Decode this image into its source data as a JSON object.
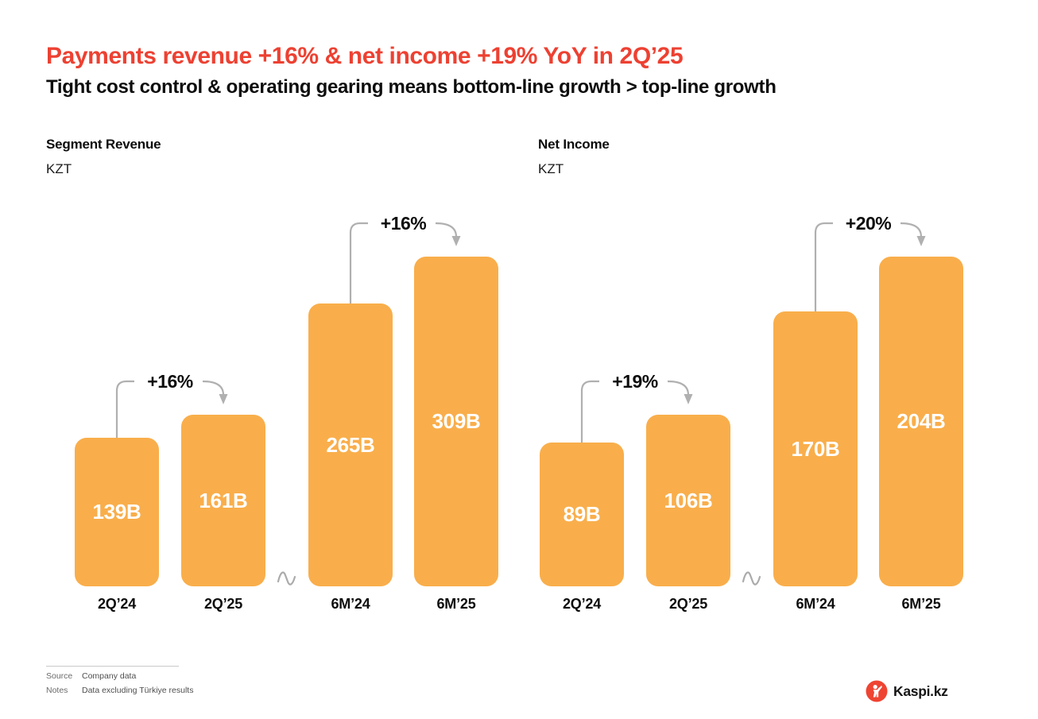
{
  "header": {
    "title": "Payments revenue +16% & net income +19% YoY in 2Q’25",
    "subtitle": "Tight cost control & operating gearing means bottom-line growth > top-line growth"
  },
  "chart_data": [
    {
      "type": "bar",
      "title": "Segment Revenue",
      "unit": "KZT",
      "categories": [
        "2Q’24",
        "2Q’25",
        "6M’24",
        "6M’25"
      ],
      "values": [
        139,
        161,
        265,
        309
      ],
      "value_labels": [
        "139B",
        "161B",
        "265B",
        "309B"
      ],
      "ylim": [
        0,
        309
      ],
      "grid": false,
      "legend": false,
      "axis_break_between": [
        "2Q’25",
        "6M’24"
      ],
      "annotations": [
        {
          "from": "2Q’24",
          "to": "2Q’25",
          "label": "+16%"
        },
        {
          "from": "6M’24",
          "to": "6M’25",
          "label": "+16%"
        }
      ]
    },
    {
      "type": "bar",
      "title": "Net Income",
      "unit": "KZT",
      "categories": [
        "2Q’24",
        "2Q’25",
        "6M’24",
        "6M’25"
      ],
      "values": [
        89,
        106,
        170,
        204
      ],
      "value_labels": [
        "89B",
        "106B",
        "170B",
        "204B"
      ],
      "ylim": [
        0,
        204
      ],
      "grid": false,
      "legend": false,
      "axis_break_between": [
        "2Q’25",
        "6M’24"
      ],
      "annotations": [
        {
          "from": "2Q’24",
          "to": "2Q’25",
          "label": "+19%"
        },
        {
          "from": "6M’24",
          "to": "6M’25",
          "label": "+20%"
        }
      ]
    }
  ],
  "footer": {
    "source_label": "Source",
    "source_value": "Company data",
    "notes_label": "Notes",
    "notes_value": "Data excluding Türkiye results"
  },
  "logo": {
    "text": "Kaspi.kz",
    "mark": "kaspi-person-in-red-circle"
  },
  "colors": {
    "bar_orange": "#F9AE4B",
    "accent_red": "#ED4132",
    "logo_red": "#EF4432",
    "arrow_gray": "#B0B0B0",
    "text_black": "#0D0D0D"
  }
}
